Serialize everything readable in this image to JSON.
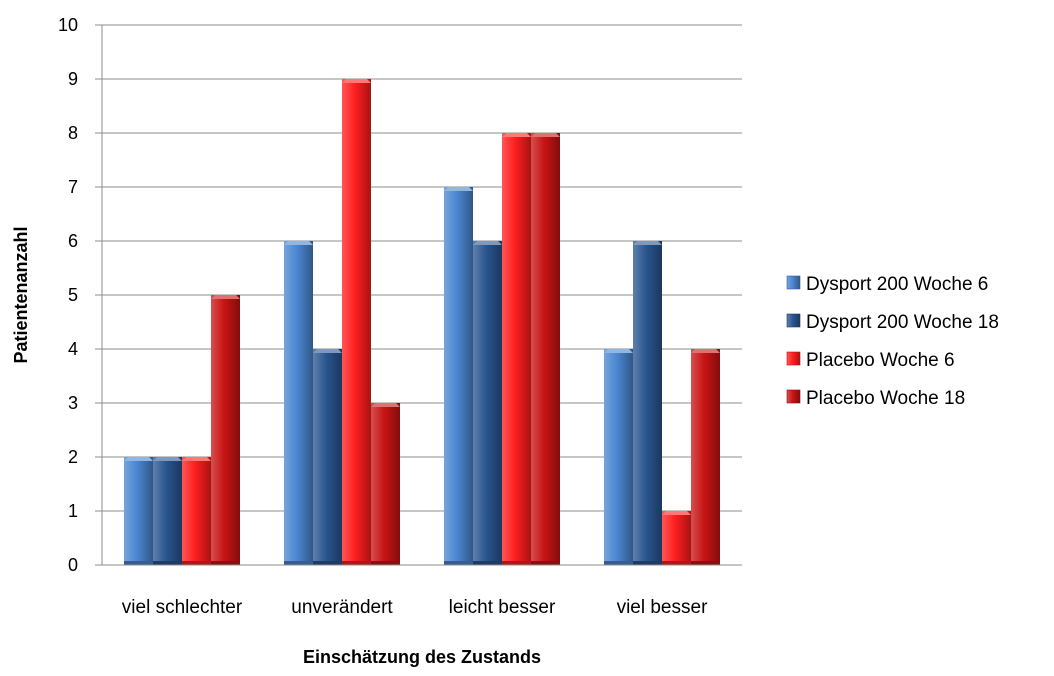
{
  "chart_data": {
    "type": "bar",
    "title": "",
    "xlabel": "Einschätzung des Zustands",
    "ylabel": "Patientenanzahl",
    "ylim": [
      0,
      10
    ],
    "yticks": [
      0,
      1,
      2,
      3,
      4,
      5,
      6,
      7,
      8,
      9,
      10
    ],
    "grid": true,
    "legend_position": "right",
    "categories": [
      "viel schlechter",
      "unverändert",
      "leicht besser",
      "viel besser"
    ],
    "series": [
      {
        "name": "Dysport 200 Woche 6",
        "color": "#4A86CF",
        "values": [
          2,
          6,
          7,
          4
        ]
      },
      {
        "name": "Dysport 200 Woche 18",
        "color": "#2A5590",
        "values": [
          2,
          4,
          6,
          6
        ]
      },
      {
        "name": "Placebo Woche 6",
        "color": "#FF1E1E",
        "values": [
          2,
          9,
          8,
          1
        ]
      },
      {
        "name": "Placebo Woche 18",
        "color": "#C81414",
        "values": [
          5,
          3,
          8,
          4
        ]
      }
    ]
  }
}
